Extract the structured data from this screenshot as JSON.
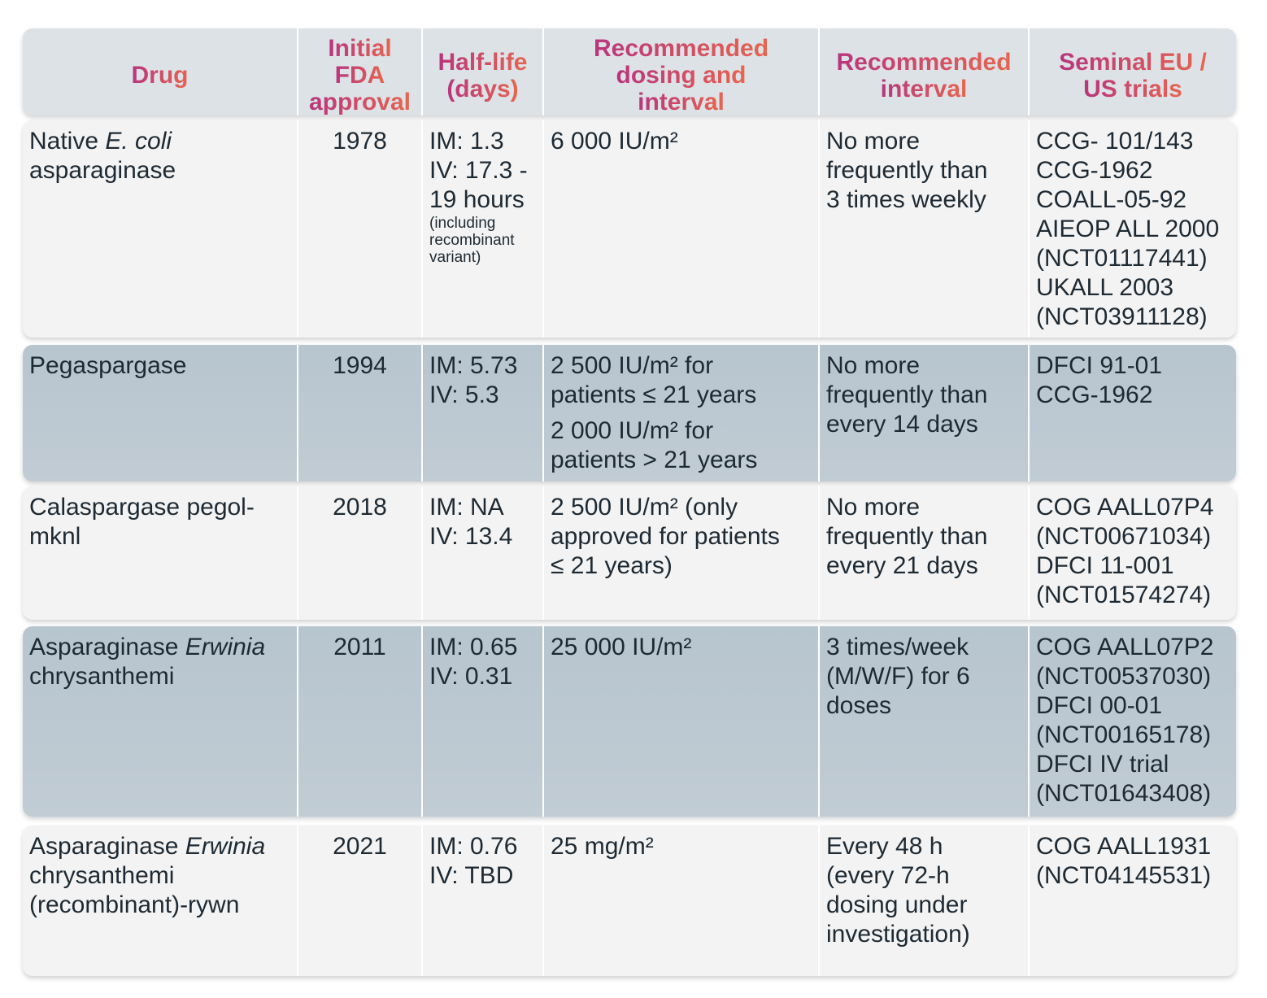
{
  "header": [
    [
      "Drug"
    ],
    [
      "Initial",
      "FDA",
      "approval"
    ],
    [
      "Half-life",
      "(days)"
    ],
    [
      "Recommended",
      "dosing and",
      "interval"
    ],
    [
      "Recommended",
      "interval"
    ],
    [
      "Seminal EU /",
      "US trials"
    ]
  ],
  "rows": [
    {
      "style": "light",
      "drug": [
        [
          {
            "t": "Native "
          },
          {
            "t": "E. coli",
            "i": true
          }
        ],
        [
          {
            "t": "asparaginase"
          }
        ]
      ],
      "approval": "1978",
      "half_life": [
        "IM: 1.3",
        "IV: 17.3 -",
        "19 hours"
      ],
      "half_life_note": [
        "(including",
        "recombinant",
        "variant)"
      ],
      "dosing": [
        [
          "6 000 IU/m²"
        ]
      ],
      "interval": [
        "No more",
        "frequently than",
        "3 times weekly"
      ],
      "trials": [
        "CCG- 101/143",
        "CCG-1962",
        "COALL-05-92",
        "AIEOP ALL 2000",
        "(NCT01117441)",
        "UKALL 2003",
        "(NCT03911128)"
      ]
    },
    {
      "style": "blue",
      "drug": [
        [
          {
            "t": "Pegaspargase"
          }
        ]
      ],
      "approval": "1994",
      "half_life": [
        "IM: 5.73",
        "IV: 5.3"
      ],
      "half_life_note": [],
      "dosing": [
        [
          "2 500 IU/m² for",
          "patients ≤ 21 years"
        ],
        [
          "2 000 IU/m² for",
          "patients > 21 years"
        ]
      ],
      "interval": [
        "No more",
        "frequently than",
        "every 14 days"
      ],
      "trials": [
        "DFCI 91-01",
        "CCG-1962"
      ]
    },
    {
      "style": "light",
      "drug": [
        [
          {
            "t": "Calaspargase pegol-"
          }
        ],
        [
          {
            "t": "mknl"
          }
        ]
      ],
      "approval": "2018",
      "half_life": [
        "IM: NA",
        "IV: 13.4"
      ],
      "half_life_note": [],
      "dosing": [
        [
          "2 500 IU/m² (only",
          "approved for patients",
          "≤ 21 years)"
        ]
      ],
      "interval": [
        "No more",
        "frequently than",
        "every 21 days"
      ],
      "trials": [
        "COG AALL07P4",
        "(NCT00671034)",
        "DFCI 11-001",
        "(NCT01574274)"
      ]
    },
    {
      "style": "blue",
      "drug": [
        [
          {
            "t": "Asparaginase "
          },
          {
            "t": "Erwinia",
            "i": true
          }
        ],
        [
          {
            "t": "chrysanthemi"
          }
        ]
      ],
      "approval": "2011",
      "half_life": [
        "IM: 0.65",
        "IV: 0.31"
      ],
      "half_life_note": [],
      "dosing": [
        [
          "25 000 IU/m²"
        ]
      ],
      "interval": [
        "3 times/week",
        "(M/W/F) for 6",
        "doses"
      ],
      "trials": [
        "COG AALL07P2",
        "(NCT00537030)",
        "DFCI 00-01",
        "(NCT00165178)",
        "DFCI IV trial",
        "(NCT01643408)"
      ]
    },
    {
      "style": "light",
      "drug": [
        [
          {
            "t": "Asparaginase "
          },
          {
            "t": "Erwinia",
            "i": true
          }
        ],
        [
          {
            "t": "chrysanthemi"
          }
        ],
        [
          {
            "t": "(recombinant)-rywn"
          }
        ]
      ],
      "approval": "2021",
      "half_life": [
        "IM: 0.76",
        "IV: TBD"
      ],
      "half_life_note": [],
      "dosing": [
        [
          "25 mg/m²"
        ]
      ],
      "interval": [
        "Every 48 h",
        "(every 72-h",
        "dosing under",
        "investigation)"
      ],
      "trials": [
        "COG AALL1931",
        "(NCT04145531)"
      ]
    }
  ]
}
